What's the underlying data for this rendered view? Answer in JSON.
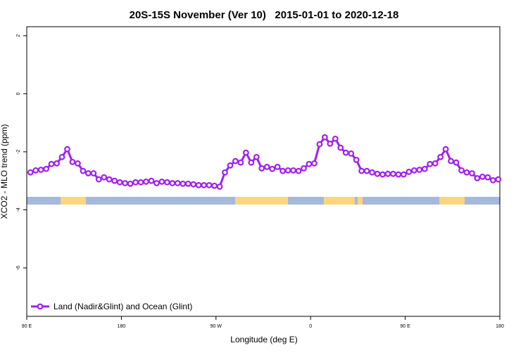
{
  "chart_data": {
    "type": "line",
    "title": "20S-15S November (Ver 10)   2015-01-01 to 2020-12-18",
    "x_label": "Longitude (deg E)",
    "y_label": "XCO2 - MLO trend (ppm)",
    "xlim": [
      90,
      540
    ],
    "ylim": [
      -7.67,
      2.31
    ],
    "xticks": [
      {
        "value": 90,
        "label": "90 E"
      },
      {
        "value": 180,
        "label": "180"
      },
      {
        "value": 270,
        "label": "90 W"
      },
      {
        "value": 360,
        "label": "0"
      },
      {
        "value": 450,
        "label": "90 E"
      },
      {
        "value": 540,
        "label": "180"
      }
    ],
    "yticks": [
      2,
      0,
      -2,
      -4,
      -6
    ],
    "legend": "bottom-left",
    "x": [
      93.5,
      98.5,
      103.5,
      108.5,
      113.5,
      118.5,
      123.5,
      128.5,
      133.5,
      138.5,
      143.5,
      148.5,
      153.5,
      158.5,
      163.5,
      168.5,
      173.5,
      178.5,
      183.5,
      188.5,
      193.5,
      198.5,
      203.5,
      208.5,
      213.5,
      218.5,
      223.5,
      228.5,
      233.5,
      238.5,
      243.5,
      248.5,
      253.5,
      258.5,
      263.5,
      268.5,
      273.5,
      278.5,
      283.5,
      288.5,
      293.5,
      298.5,
      303.5,
      308.5,
      313.5,
      318.5,
      323.5,
      328.5,
      333.5,
      338.5,
      343.5,
      348.5,
      353.5,
      358.5,
      363.5,
      368.5,
      373.5,
      378.5,
      383.5,
      388.5,
      393.5,
      398.5,
      403.5,
      408.5,
      413.5,
      418.5,
      423.5,
      428.5,
      433.5,
      438.5,
      443.5,
      448.5,
      453.5,
      458.5,
      463.5,
      468.5,
      473.5,
      478.5,
      483.5,
      488.5,
      493.5,
      498.5,
      503.5,
      508.5,
      513.5,
      518.5,
      523.5,
      528.5,
      533.5,
      538.5
    ],
    "series": [
      {
        "name": "Land (Nadir&Glint) and Ocean (Glint)",
        "color": "#a020f0",
        "values": [
          -2.71,
          -2.64,
          -2.62,
          -2.59,
          -2.42,
          -2.4,
          -2.18,
          -1.91,
          -2.35,
          -2.4,
          -2.66,
          -2.74,
          -2.74,
          -2.95,
          -2.88,
          -2.95,
          -3.0,
          -3.05,
          -3.08,
          -3.1,
          -3.05,
          -3.05,
          -3.03,
          -3.0,
          -3.08,
          -3.03,
          -3.05,
          -3.08,
          -3.08,
          -3.1,
          -3.1,
          -3.12,
          -3.15,
          -3.15,
          -3.15,
          -3.17,
          -3.2,
          -2.71,
          -2.47,
          -2.32,
          -2.37,
          -2.03,
          -2.37,
          -2.18,
          -2.57,
          -2.52,
          -2.59,
          -2.52,
          -2.66,
          -2.64,
          -2.64,
          -2.66,
          -2.57,
          -2.42,
          -2.4,
          -1.74,
          -1.5,
          -1.72,
          -1.55,
          -1.86,
          -2.03,
          -2.06,
          -2.28,
          -2.66,
          -2.66,
          -2.71,
          -2.76,
          -2.78,
          -2.76,
          -2.76,
          -2.78,
          -2.78,
          -2.69,
          -2.64,
          -2.62,
          -2.59,
          -2.42,
          -2.4,
          -2.18,
          -1.91,
          -2.32,
          -2.37,
          -2.64,
          -2.71,
          -2.74,
          -2.91,
          -2.86,
          -2.88,
          -2.98,
          -2.95
        ]
      }
    ]
  }
}
